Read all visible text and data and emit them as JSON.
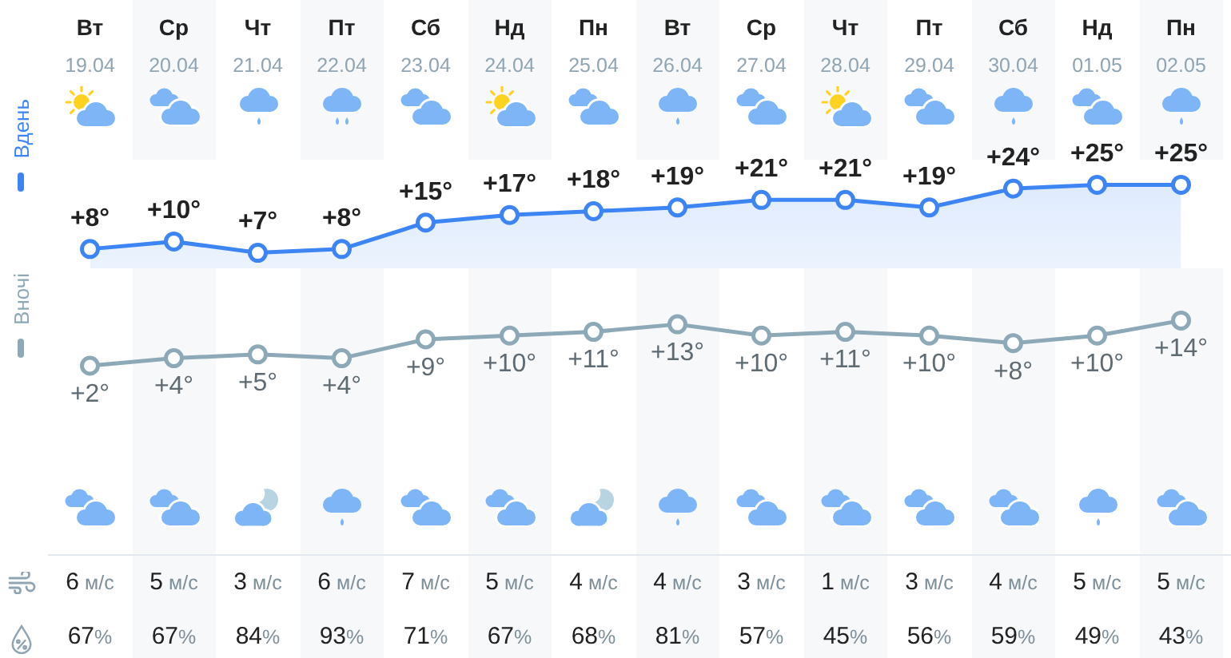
{
  "chart_data": [
    {
      "type": "area",
      "categories": [
        "Вт\n19.04",
        "Ср\n20.04",
        "Чт\n21.04",
        "Пт\n22.04",
        "Сб\n23.04",
        "Нд\n24.04",
        "Пн\n25.04",
        "Вт\n26.04",
        "Ср\n27.04",
        "Чт\n28.04",
        "Пт\n29.04",
        "Сб\n30.04",
        "Нд\n01.05",
        "Пн\n02.05"
      ],
      "series": [
        {
          "name": "Вдень",
          "color": "#3d84f4",
          "values": [
            8,
            10,
            7,
            8,
            15,
            17,
            18,
            19,
            21,
            21,
            19,
            24,
            25,
            25
          ],
          "value_labels": [
            "+8°",
            "+10°",
            "+7°",
            "+8°",
            "+15°",
            "+17°",
            "+18°",
            "+19°",
            "+21°",
            "+21°",
            "+19°",
            "+24°",
            "+25°",
            "+25°"
          ]
        }
      ],
      "marker": "circle",
      "legend": "left",
      "tick_labels": "x"
    },
    {
      "type": "line",
      "categories": [
        null,
        null,
        null,
        null,
        null,
        null,
        null,
        null,
        null,
        null,
        null,
        null,
        null,
        null
      ],
      "series": [
        {
          "name": "Вночі",
          "color": "#8da9b7",
          "values": [
            2,
            4,
            5,
            4,
            9,
            10,
            11,
            13,
            10,
            11,
            10,
            8,
            10,
            14
          ],
          "value_labels": [
            "+2°",
            "+4°",
            "+5°",
            "+4°",
            "+9°",
            "+10°",
            "+11°",
            "+13°",
            "+10°",
            "+11°",
            "+10°",
            "+8°",
            "+10°",
            "+14°"
          ]
        }
      ],
      "annotations": [
        "6 м/с",
        "5 м/с",
        "3 м/с",
        "6 м/с",
        "7 м/с",
        "5 м/с",
        "4 м/с",
        "4 м/с",
        "3 м/с",
        "1 м/с",
        "3 м/с",
        "4 м/с",
        "5 м/с",
        "5 м/с",
        "67%",
        "67%",
        "84%",
        "93%",
        "71%",
        "67%",
        "68%",
        "81%",
        "57%",
        "45%",
        "56%",
        "59%",
        "49%",
        "43%"
      ],
      "marker": "circle",
      "legend": "left",
      "tick_labels": "x"
    }
  ]
}
